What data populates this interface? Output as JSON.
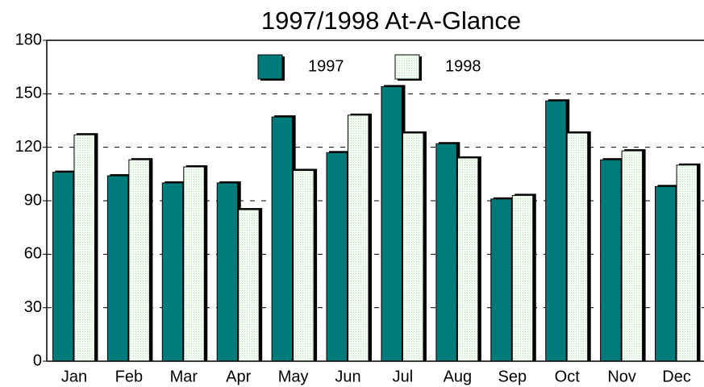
{
  "chart_data": {
    "type": "bar",
    "title": "1997/1998 At-A-Glance",
    "categories": [
      "Jan",
      "Feb",
      "Mar",
      "Apr",
      "May",
      "Jun",
      "Jul",
      "Aug",
      "Sep",
      "Oct",
      "Nov",
      "Dec"
    ],
    "series": [
      {
        "name": "1997",
        "color": "#007b7b",
        "values": [
          106,
          104,
          100,
          100,
          137,
          117,
          154,
          122,
          91,
          146,
          113,
          98
        ]
      },
      {
        "name": "1998",
        "color": "#f0fff0",
        "values": [
          127,
          113,
          109,
          85,
          107,
          138,
          128,
          114,
          93,
          128,
          118,
          110
        ]
      }
    ],
    "ylim": [
      0,
      180
    ],
    "yticks": [
      0,
      30,
      60,
      90,
      120,
      150,
      180
    ],
    "grid": true
  }
}
